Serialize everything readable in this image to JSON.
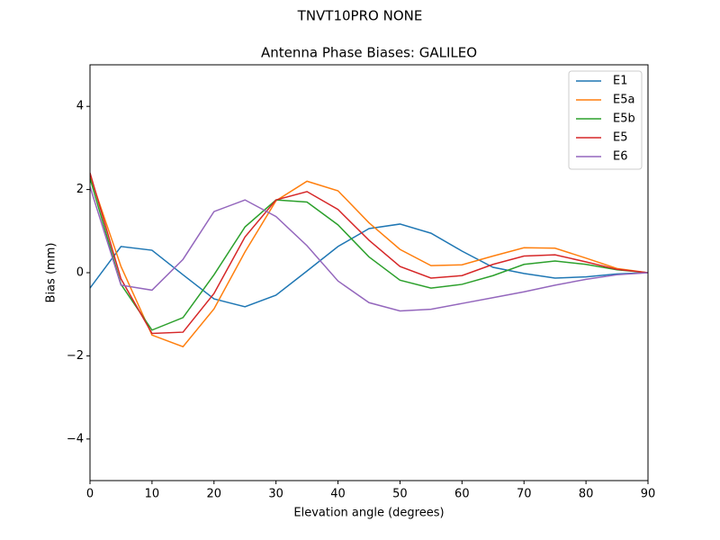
{
  "chart_data": {
    "type": "line",
    "suptitle": "TNVT10PRO       NONE",
    "title": "Antenna Phase Biases: GALILEO",
    "xlabel": "Elevation angle (degrees)",
    "ylabel": "Bias (mm)",
    "x": [
      0,
      5,
      10,
      15,
      20,
      25,
      30,
      35,
      40,
      45,
      50,
      55,
      60,
      65,
      70,
      75,
      80,
      85,
      90
    ],
    "xlim": [
      0,
      90
    ],
    "xticks": [
      0,
      10,
      20,
      30,
      40,
      50,
      60,
      70,
      80,
      90
    ],
    "ylim": [
      -5,
      5
    ],
    "yticks": [
      {
        "value": -4,
        "label": "−4"
      },
      {
        "value": -2,
        "label": "−2"
      },
      0,
      2,
      4
    ],
    "legend": "upper right",
    "series": [
      {
        "name": "E1",
        "color": "#1f77b4",
        "values": [
          -0.37,
          0.63,
          0.54,
          -0.05,
          -0.63,
          -0.82,
          -0.54,
          0.04,
          0.63,
          1.06,
          1.17,
          0.95,
          0.52,
          0.13,
          -0.02,
          -0.13,
          -0.1,
          -0.03,
          0
        ]
      },
      {
        "name": "E5a",
        "color": "#ff7f0e",
        "values": [
          2.33,
          0.15,
          -1.5,
          -1.78,
          -0.87,
          0.5,
          1.73,
          2.2,
          1.97,
          1.2,
          0.56,
          0.17,
          0.19,
          0.4,
          0.6,
          0.59,
          0.35,
          0.1,
          0
        ]
      },
      {
        "name": "E5b",
        "color": "#2ca02c",
        "values": [
          2.27,
          -0.28,
          -1.38,
          -1.08,
          -0.05,
          1.1,
          1.75,
          1.7,
          1.15,
          0.38,
          -0.18,
          -0.37,
          -0.28,
          -0.07,
          0.2,
          0.28,
          0.2,
          0.07,
          0
        ]
      },
      {
        "name": "E5",
        "color": "#d62728",
        "values": [
          2.4,
          -0.15,
          -1.46,
          -1.43,
          -0.5,
          0.86,
          1.75,
          1.95,
          1.52,
          0.78,
          0.15,
          -0.13,
          -0.07,
          0.2,
          0.4,
          0.43,
          0.26,
          0.08,
          0
        ]
      },
      {
        "name": "E6",
        "color": "#9467bd",
        "values": [
          2.07,
          -0.3,
          -0.42,
          0.32,
          1.47,
          1.75,
          1.35,
          0.65,
          -0.2,
          -0.72,
          -0.92,
          -0.88,
          -0.74,
          -0.6,
          -0.46,
          -0.3,
          -0.16,
          -0.05,
          0
        ]
      }
    ]
  }
}
